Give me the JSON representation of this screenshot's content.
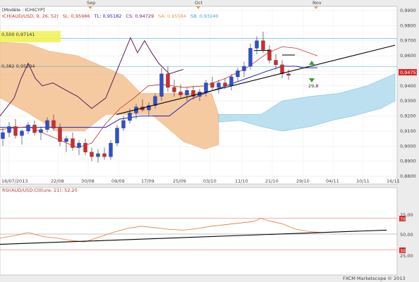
{
  "header": {
    "model": "[Modèle : ICHICYP]",
    "legend": [
      {
        "text": "ICH(AUD/USD, 9, 26, 52)",
        "color": "#c03030"
      },
      {
        "text": "SL: 0,95986",
        "color": "#c03030"
      },
      {
        "text": "TL: 0,95182",
        "color": "#2020c0"
      },
      {
        "text": "CS: 0,94729",
        "color": "#6a1a6a"
      },
      {
        "text": "SA: 0,95584",
        "color": "#e59a4a"
      },
      {
        "text": "SB: 0,93240",
        "color": "#3aa0c8"
      }
    ]
  },
  "top_months": [
    {
      "label": "Sep"
    },
    {
      "label": "Oct"
    },
    {
      "label": "Nov"
    }
  ],
  "fib": [
    {
      "label": "0,500 0,97141",
      "value": 0.97141
    },
    {
      "label": "0,382 0,95294",
      "value": 0.95294
    }
  ],
  "price_axis": [
    "0,9900",
    "0,9800",
    "0,9700",
    "0,9600",
    "0,9500",
    "0,9400",
    "0,9300",
    "0,9200",
    "0,9100",
    "0,9000",
    "0,8900",
    "0,8800"
  ],
  "current_price": "0,94753",
  "date_labels": [
    "16/07/2013",
    "22/08",
    "30/08",
    "09/09",
    "17/09",
    "25/09",
    "03/10",
    "11/10",
    "21/10",
    "29/10",
    "04/11",
    "10/11",
    "16/11"
  ],
  "annotation": "29,8",
  "rsi": {
    "title": "RSI(AUD/USD.Clôture, 21): 52,20",
    "axis": [
      "75,00",
      "50,00",
      "25,00"
    ],
    "badge_high": "70",
    "badge_low": "30"
  },
  "footer": "FXCM Marketscope © 2013",
  "colors": {
    "up_candle": "#2a4fd6",
    "down_candle": "#d42a2a",
    "kijun": "#2020c0",
    "tenkan": "#c03030",
    "chikou": "#5a1a5a",
    "cloud_bear": "#f6caa0",
    "cloud_bull": "#bde0f0",
    "rsi_line": "#e0783a"
  },
  "chart_data": {
    "type": "candlestick",
    "ylim": [
      0.875,
      0.99
    ],
    "candles": [
      {
        "o": 0.905,
        "h": 0.912,
        "l": 0.9,
        "c": 0.909
      },
      {
        "o": 0.909,
        "h": 0.916,
        "l": 0.906,
        "c": 0.913
      },
      {
        "o": 0.913,
        "h": 0.918,
        "l": 0.905,
        "c": 0.907
      },
      {
        "o": 0.907,
        "h": 0.911,
        "l": 0.901,
        "c": 0.91
      },
      {
        "o": 0.91,
        "h": 0.916,
        "l": 0.908,
        "c": 0.914
      },
      {
        "o": 0.914,
        "h": 0.917,
        "l": 0.907,
        "c": 0.909
      },
      {
        "o": 0.909,
        "h": 0.913,
        "l": 0.904,
        "c": 0.911
      },
      {
        "o": 0.911,
        "h": 0.919,
        "l": 0.909,
        "c": 0.917
      },
      {
        "o": 0.917,
        "h": 0.921,
        "l": 0.91,
        "c": 0.912
      },
      {
        "o": 0.912,
        "h": 0.915,
        "l": 0.9,
        "c": 0.903
      },
      {
        "o": 0.903,
        "h": 0.907,
        "l": 0.896,
        "c": 0.905
      },
      {
        "o": 0.905,
        "h": 0.909,
        "l": 0.897,
        "c": 0.899
      },
      {
        "o": 0.899,
        "h": 0.904,
        "l": 0.894,
        "c": 0.902
      },
      {
        "o": 0.902,
        "h": 0.905,
        "l": 0.894,
        "c": 0.896
      },
      {
        "o": 0.896,
        "h": 0.899,
        "l": 0.89,
        "c": 0.893
      },
      {
        "o": 0.893,
        "h": 0.898,
        "l": 0.889,
        "c": 0.895
      },
      {
        "o": 0.895,
        "h": 0.899,
        "l": 0.891,
        "c": 0.893
      },
      {
        "o": 0.893,
        "h": 0.904,
        "l": 0.891,
        "c": 0.902
      },
      {
        "o": 0.902,
        "h": 0.914,
        "l": 0.9,
        "c": 0.912
      },
      {
        "o": 0.912,
        "h": 0.92,
        "l": 0.91,
        "c": 0.917
      },
      {
        "o": 0.917,
        "h": 0.925,
        "l": 0.915,
        "c": 0.922
      },
      {
        "o": 0.922,
        "h": 0.928,
        "l": 0.918,
        "c": 0.926
      },
      {
        "o": 0.926,
        "h": 0.931,
        "l": 0.923,
        "c": 0.924
      },
      {
        "o": 0.924,
        "h": 0.929,
        "l": 0.92,
        "c": 0.927
      },
      {
        "o": 0.927,
        "h": 0.935,
        "l": 0.925,
        "c": 0.933
      },
      {
        "o": 0.933,
        "h": 0.952,
        "l": 0.93,
        "c": 0.948
      },
      {
        "o": 0.948,
        "h": 0.953,
        "l": 0.936,
        "c": 0.939
      },
      {
        "o": 0.939,
        "h": 0.944,
        "l": 0.933,
        "c": 0.936
      },
      {
        "o": 0.936,
        "h": 0.941,
        "l": 0.932,
        "c": 0.934
      },
      {
        "o": 0.934,
        "h": 0.939,
        "l": 0.93,
        "c": 0.937
      },
      {
        "o": 0.937,
        "h": 0.94,
        "l": 0.931,
        "c": 0.933
      },
      {
        "o": 0.933,
        "h": 0.938,
        "l": 0.93,
        "c": 0.936
      },
      {
        "o": 0.936,
        "h": 0.944,
        "l": 0.933,
        "c": 0.942
      },
      {
        "o": 0.942,
        "h": 0.946,
        "l": 0.937,
        "c": 0.939
      },
      {
        "o": 0.939,
        "h": 0.944,
        "l": 0.935,
        "c": 0.942
      },
      {
        "o": 0.942,
        "h": 0.945,
        "l": 0.938,
        "c": 0.94
      },
      {
        "o": 0.94,
        "h": 0.948,
        "l": 0.937,
        "c": 0.946
      },
      {
        "o": 0.946,
        "h": 0.952,
        "l": 0.943,
        "c": 0.95
      },
      {
        "o": 0.95,
        "h": 0.956,
        "l": 0.946,
        "c": 0.953
      },
      {
        "o": 0.953,
        "h": 0.968,
        "l": 0.951,
        "c": 0.965
      },
      {
        "o": 0.965,
        "h": 0.973,
        "l": 0.961,
        "c": 0.97
      },
      {
        "o": 0.97,
        "h": 0.976,
        "l": 0.962,
        "c": 0.964
      },
      {
        "o": 0.964,
        "h": 0.967,
        "l": 0.955,
        "c": 0.957
      },
      {
        "o": 0.957,
        "h": 0.961,
        "l": 0.951,
        "c": 0.954
      },
      {
        "o": 0.954,
        "h": 0.957,
        "l": 0.945,
        "c": 0.948
      },
      {
        "o": 0.948,
        "h": 0.951,
        "l": 0.944,
        "c": 0.947
      }
    ],
    "rsi_ylim": [
      0,
      100
    ]
  }
}
